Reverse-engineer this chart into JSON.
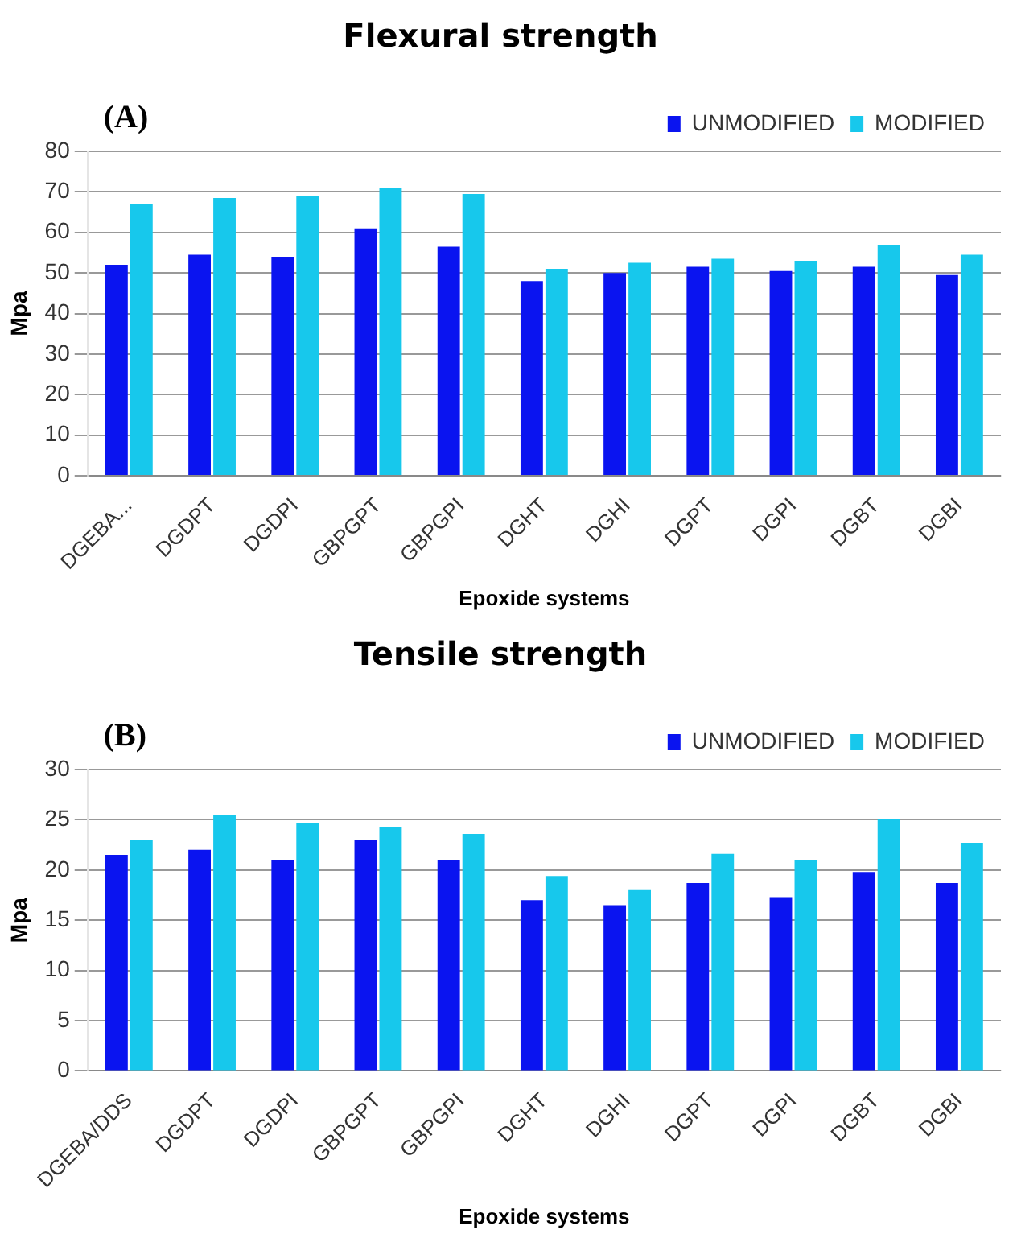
{
  "chart_data": [
    {
      "type": "bar",
      "title": "Flexural strength",
      "xlabel": "Epoxide systems",
      "ylabel": "Mpa",
      "annotations": [
        "(A)"
      ],
      "categories": [
        "DGEBA...",
        "DGDPT",
        "DGDPI",
        "GBPGPT",
        "GBPGPI",
        "DGHT",
        "DGHI",
        "DGPT",
        "DGPI",
        "DGBT",
        "DGBI"
      ],
      "series": [
        {
          "name": "UNMODIFIED",
          "color": "#0a14f0",
          "values": [
            52,
            54.5,
            54,
            61,
            56.5,
            48,
            50,
            51.5,
            50.5,
            51.5,
            49.5
          ]
        },
        {
          "name": "MODIFIED",
          "color": "#17c8ec",
          "values": [
            67,
            68.5,
            69,
            71,
            69.5,
            51,
            52.5,
            53.5,
            53,
            57,
            54.5
          ]
        }
      ],
      "ylim": [
        0,
        80
      ],
      "yticks": [
        0,
        10,
        20,
        30,
        40,
        50,
        60,
        70,
        80
      ],
      "grid": "y",
      "legend": "top right"
    },
    {
      "type": "bar",
      "title": "Tensile strength",
      "xlabel": "Epoxide systems",
      "ylabel": "Mpa",
      "annotations": [
        "(B)"
      ],
      "categories": [
        "DGEBA/DDS",
        "DGDPT",
        "DGDPI",
        "GBPGPT",
        "GBPGPI",
        "DGHT",
        "DGHI",
        "DGPT",
        "DGPI",
        "DGBT",
        "DGBI"
      ],
      "series": [
        {
          "name": "UNMODIFIED",
          "color": "#0a14f0",
          "values": [
            21.5,
            22,
            21,
            23,
            21,
            17,
            16.5,
            18.7,
            17.3,
            19.8,
            18.7
          ]
        },
        {
          "name": "MODIFIED",
          "color": "#17c8ec",
          "values": [
            23,
            25.5,
            24.7,
            24.3,
            23.6,
            19.4,
            18,
            21.6,
            21,
            25.1,
            22.7
          ]
        }
      ],
      "ylim": [
        0,
        30
      ],
      "yticks": [
        0,
        5,
        10,
        15,
        20,
        25,
        30
      ],
      "grid": "y",
      "legend": "top right"
    }
  ]
}
